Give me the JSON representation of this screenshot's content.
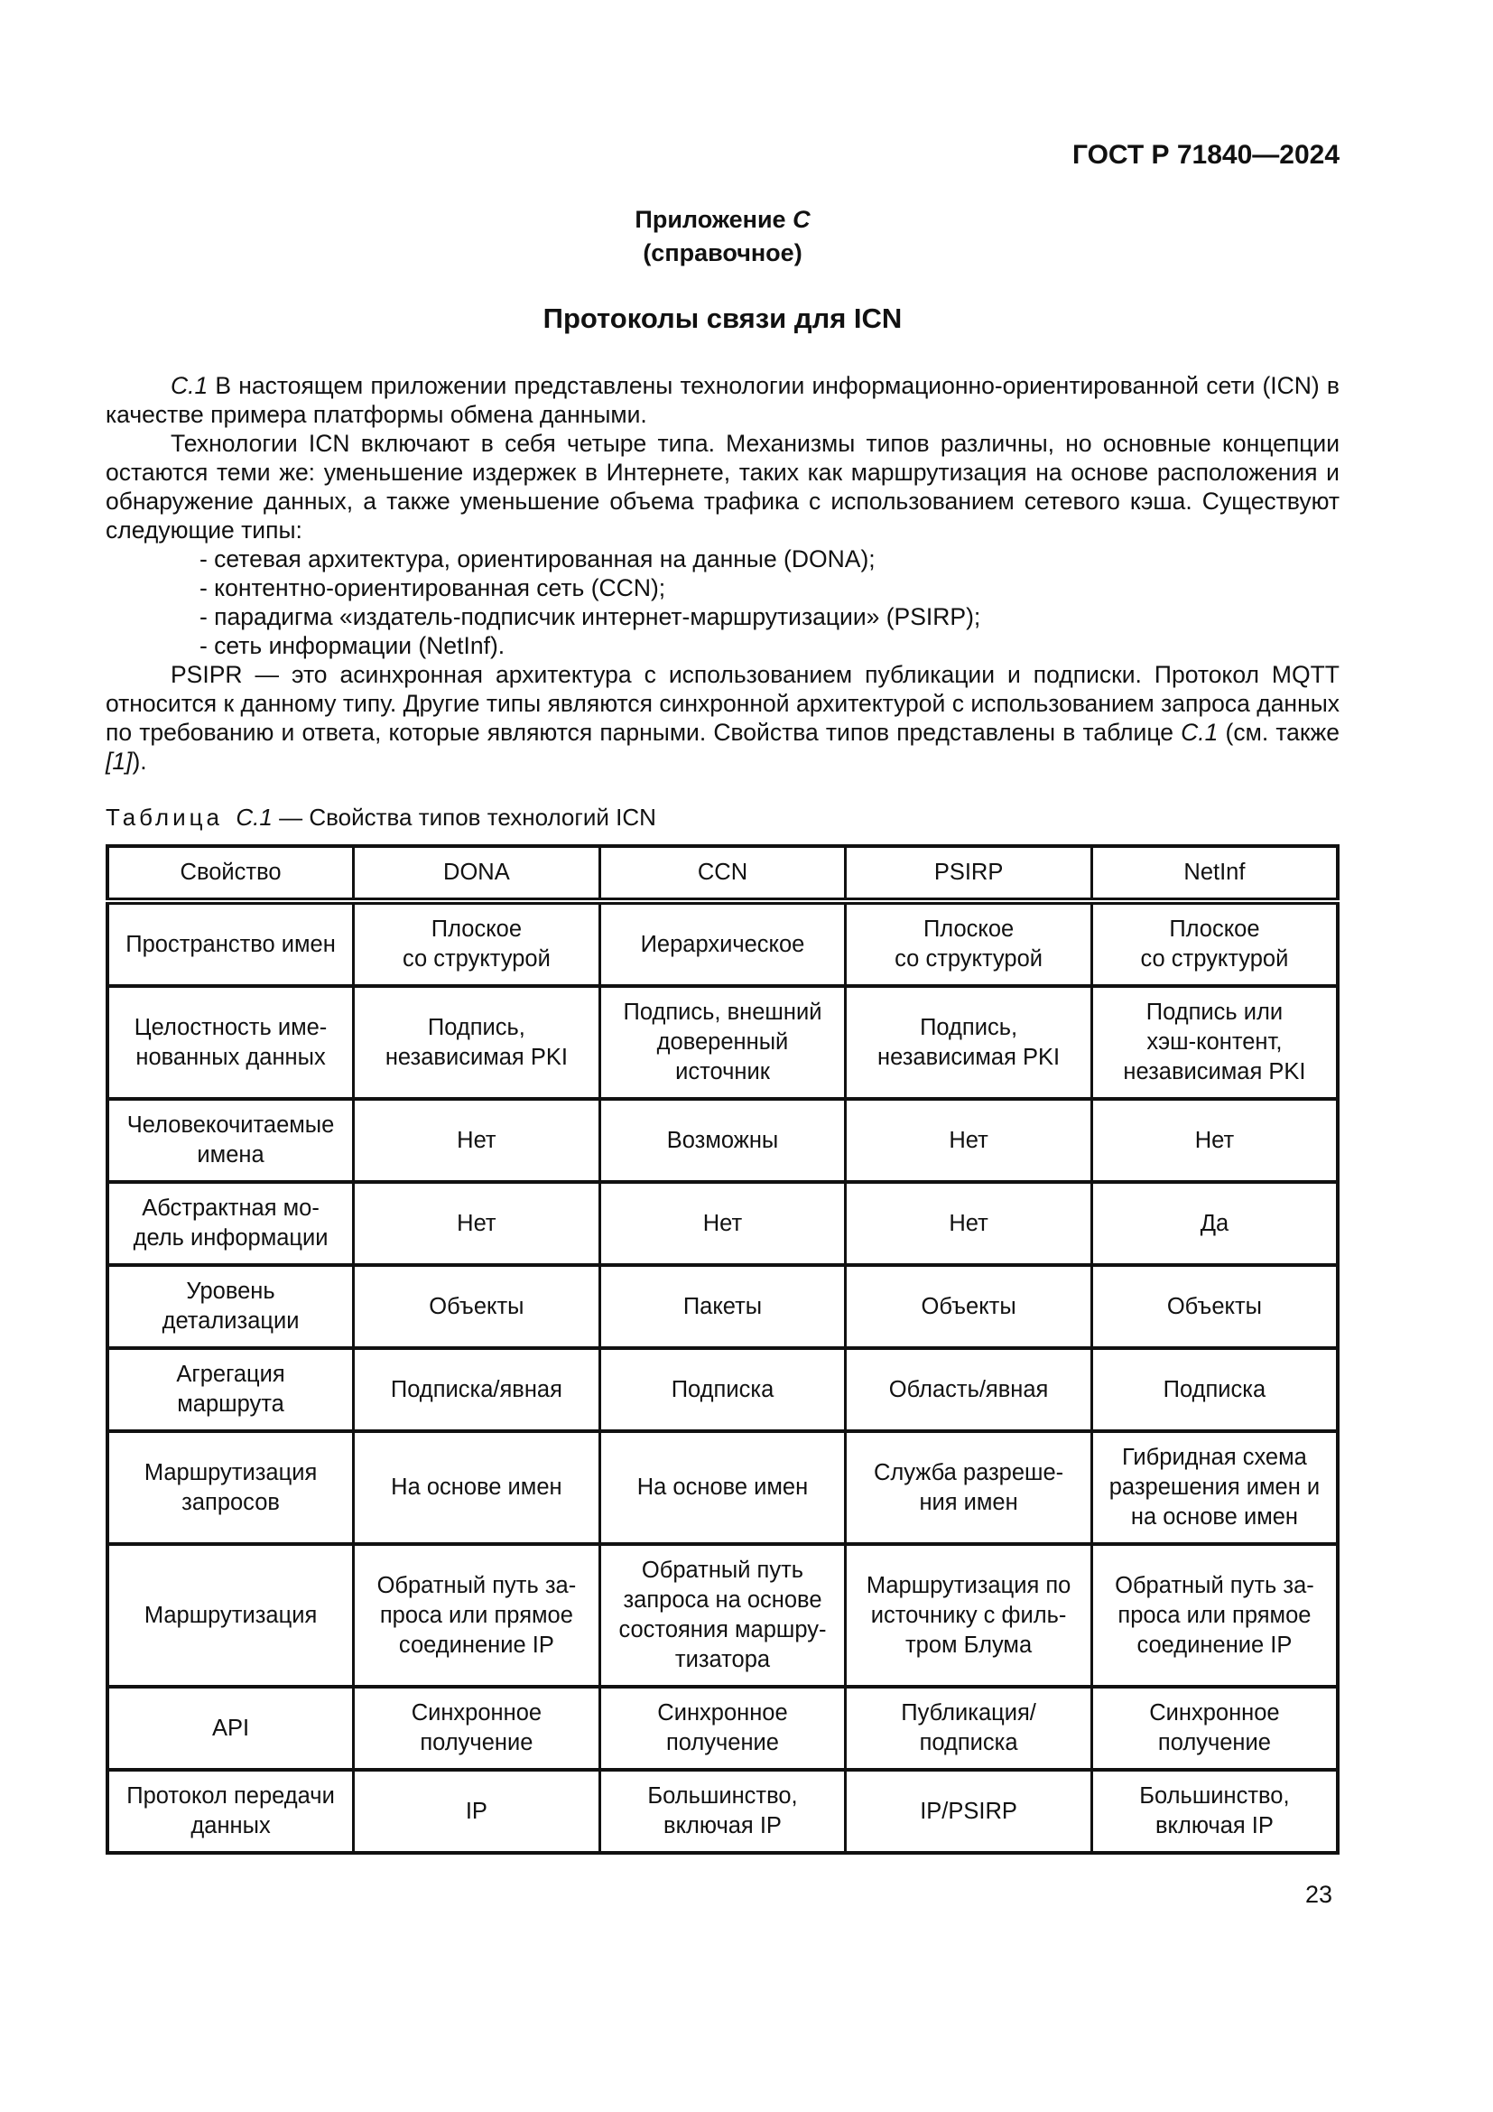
{
  "header": {
    "standard_code": "ГОСТ Р 71840—2024"
  },
  "appendix": {
    "label_text": "Приложение ",
    "label_letter": "С",
    "kind": "(справочное)",
    "title": "Протоколы связи для ICN"
  },
  "body": {
    "p1_num": "С.1",
    "p1_text": " В настоящем приложении представлены технологии информационно-ориентированной сети (ICN) в качестве примера платформы обмена данными.",
    "p2": "Технологии ICN включают в себя четыре типа. Механизмы типов различны, но основные концепции остаются теми же: уменьшение издержек в Интернете, таких как маршрутизация на основе расположения и обнаружение данных, а также уменьшение объема трафика с использованием сетевого кэша. Существуют следующие типы:",
    "list": [
      "- сетевая архитектура, ориентированная на данные (DONA);",
      "- контентно-ориентированная сеть (CCN);",
      "- парадигма «издатель-подписчик интернет-маршрутизации» (PSIRP);",
      "- сеть информации (NetInf)."
    ],
    "p3_a": "PSIPR — это асинхронная архитектура с использованием публикации и подписки. Протокол MQTT относится к данному типу. Другие типы являются синхронной архитектурой с использованием запроса данных по требованию и ответа, которые являются парными. Свойства типов представлены в таблице ",
    "p3_ref_table": "С.1",
    "p3_b": " (см. также ",
    "p3_ref_src": "[1]",
    "p3_c": ")."
  },
  "table": {
    "caption_label": "Таблица",
    "caption_num": "С.1",
    "caption_rest": " — Свойства типов технологий ICN",
    "columns": [
      "Свойство",
      "DONA",
      "CCN",
      "PSIRP",
      "NetInf"
    ],
    "rows": [
      {
        "property": "Пространство имен",
        "values": [
          "Плоское\nсо структурой",
          "Иерархическое",
          "Плоское\nсо структурой",
          "Плоское\nсо структурой"
        ]
      },
      {
        "property": "Целостность име-\nнованных данных",
        "values": [
          "Подпись,\nнезависимая PKI",
          "Подпись, внешний\nдоверенный\nисточник",
          "Подпись,\nнезависимая PKI",
          "Подпись или\nхэш-контент,\nнезависимая PKI"
        ]
      },
      {
        "property": "Человекочитаемые\nимена",
        "values": [
          "Нет",
          "Возможны",
          "Нет",
          "Нет"
        ]
      },
      {
        "property": "Абстрактная мо-\nдель информации",
        "values": [
          "Нет",
          "Нет",
          "Нет",
          "Да"
        ]
      },
      {
        "property": "Уровень\nдетализации",
        "values": [
          "Объекты",
          "Пакеты",
          "Объекты",
          "Объекты"
        ]
      },
      {
        "property": "Агрегация\nмаршрута",
        "values": [
          "Подписка/явная",
          "Подписка",
          "Область/явная",
          "Подписка"
        ]
      },
      {
        "property": "Маршрутизация\nзапросов",
        "values": [
          "На основе имен",
          "На основе имен",
          "Служба разреше-\nния имен",
          "Гибридная схема\nразрешения имен и\nна основе имен"
        ]
      },
      {
        "property": "Маршрутизация",
        "values": [
          "Обратный путь за-\nпроса или прямое\nсоединение IP",
          "Обратный путь\nзапроса на основе\nсостояния маршру-\nтизатора",
          "Маршрутизация по\nисточнику с филь-\nтром Блума",
          "Обратный путь за-\nпроса или прямое\nсоединение IP"
        ]
      },
      {
        "property": "API",
        "values": [
          "Синхронное\nполучение",
          "Синхронное\nполучение",
          "Публикация/\nподписка",
          "Синхронное\nполучение"
        ]
      },
      {
        "property": "Протокол передачи\nданных",
        "values": [
          "IP",
          "Большинство,\nвключая IP",
          "IP/PSIRP",
          "Большинство,\nвключая IP"
        ]
      }
    ]
  },
  "footer": {
    "page_number": "23"
  }
}
